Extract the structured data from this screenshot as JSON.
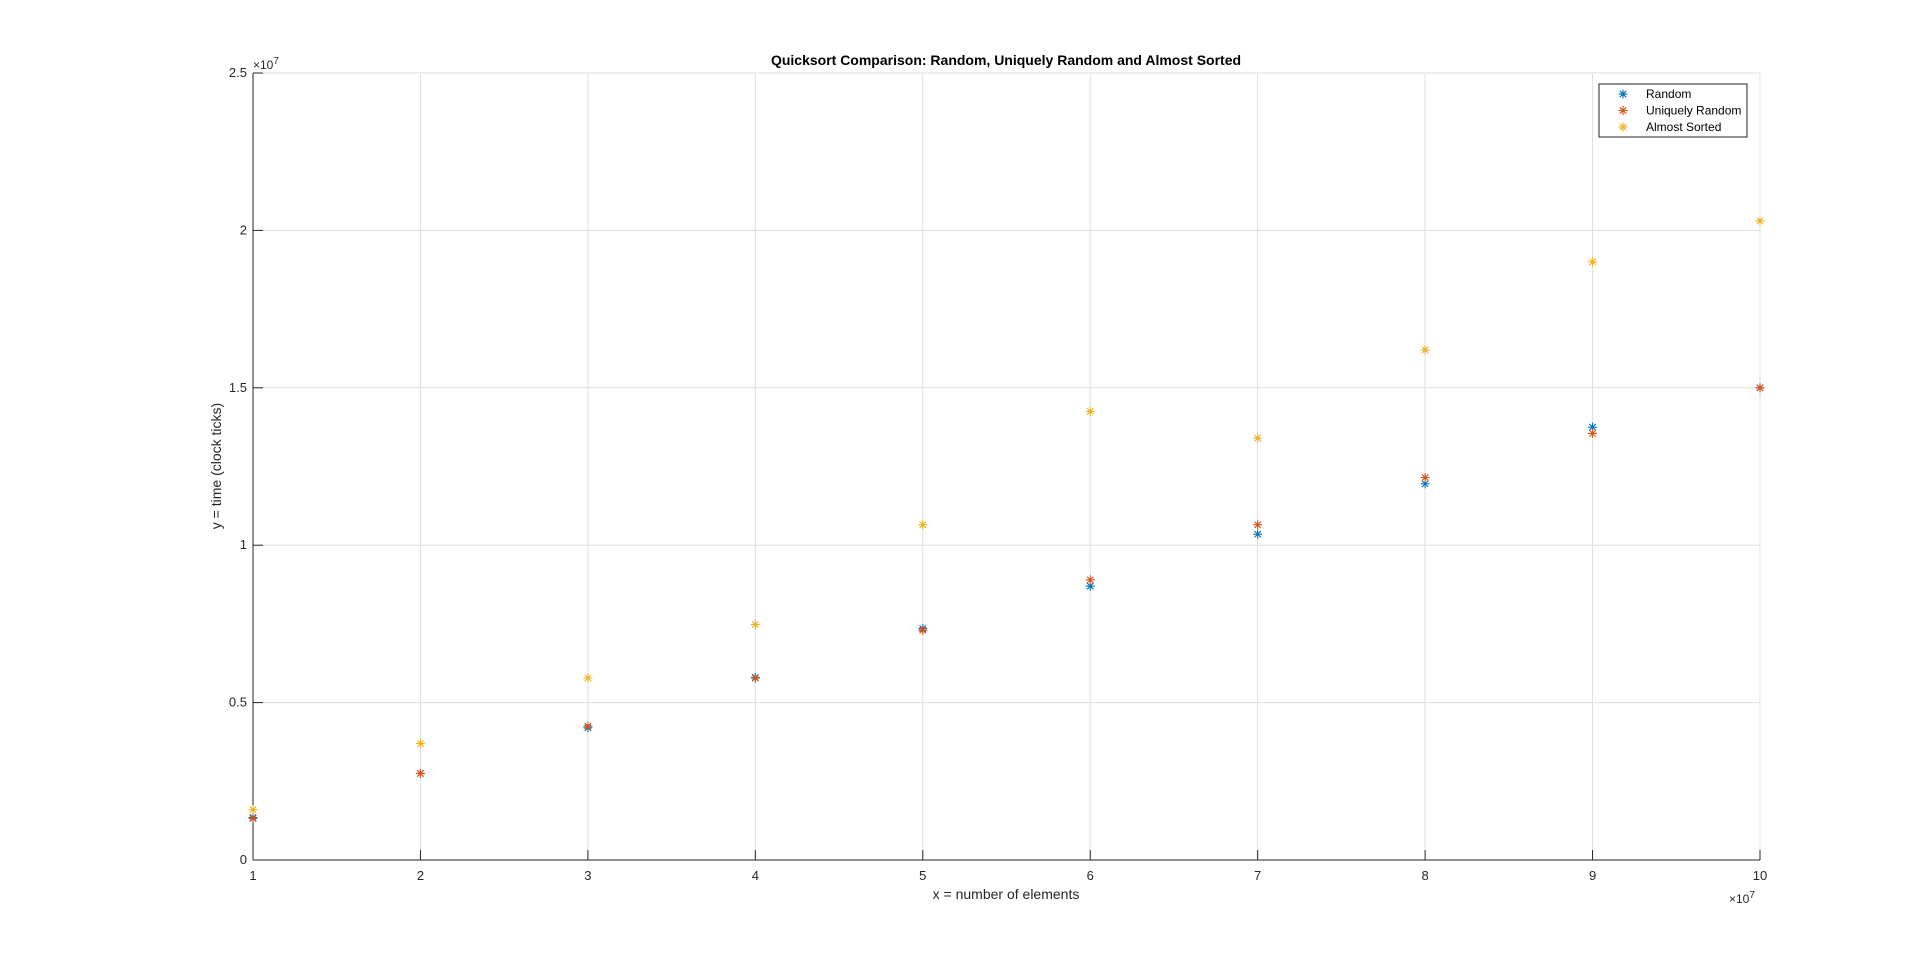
{
  "chart_data": {
    "type": "scatter",
    "title": "Quicksort Comparison: Random, Uniquely Random and Almost Sorted",
    "xlabel": "x = number of elements",
    "ylabel": "y = time (clock ticks)",
    "x_multiplier": "×10",
    "x_exponent": "7",
    "y_multiplier": "×10",
    "y_exponent": "7",
    "xlim": [
      1,
      10
    ],
    "ylim": [
      0,
      2.5
    ],
    "x_ticks": [
      1,
      2,
      3,
      4,
      5,
      6,
      7,
      8,
      9,
      10
    ],
    "x_tick_labels": [
      "1",
      "2",
      "3",
      "4",
      "5",
      "6",
      "7",
      "8",
      "9",
      "10"
    ],
    "y_ticks": [
      0,
      0.5,
      1,
      1.5,
      2,
      2.5
    ],
    "y_tick_labels": [
      "0",
      "0.5",
      "1",
      "1.5",
      "2",
      "2.5"
    ],
    "grid": true,
    "marker": "*",
    "legend_position": "top-right",
    "x": [
      1,
      2,
      3,
      4,
      5,
      6,
      7,
      8,
      9,
      10
    ],
    "series": [
      {
        "name": "Random",
        "color": "#0072BD",
        "values": [
          0.135,
          0.275,
          0.42,
          0.58,
          0.735,
          0.87,
          1.035,
          1.195,
          1.375,
          1.5
        ]
      },
      {
        "name": "Uniquely Random",
        "color": "#D95319",
        "values": [
          0.132,
          0.275,
          0.425,
          0.578,
          0.73,
          0.89,
          1.065,
          1.215,
          1.355,
          1.5
        ]
      },
      {
        "name": "Almost Sorted",
        "color": "#EDB120",
        "values": [
          0.16,
          0.37,
          0.578,
          0.748,
          1.065,
          1.425,
          1.34,
          1.62,
          1.9,
          2.03
        ]
      }
    ]
  }
}
